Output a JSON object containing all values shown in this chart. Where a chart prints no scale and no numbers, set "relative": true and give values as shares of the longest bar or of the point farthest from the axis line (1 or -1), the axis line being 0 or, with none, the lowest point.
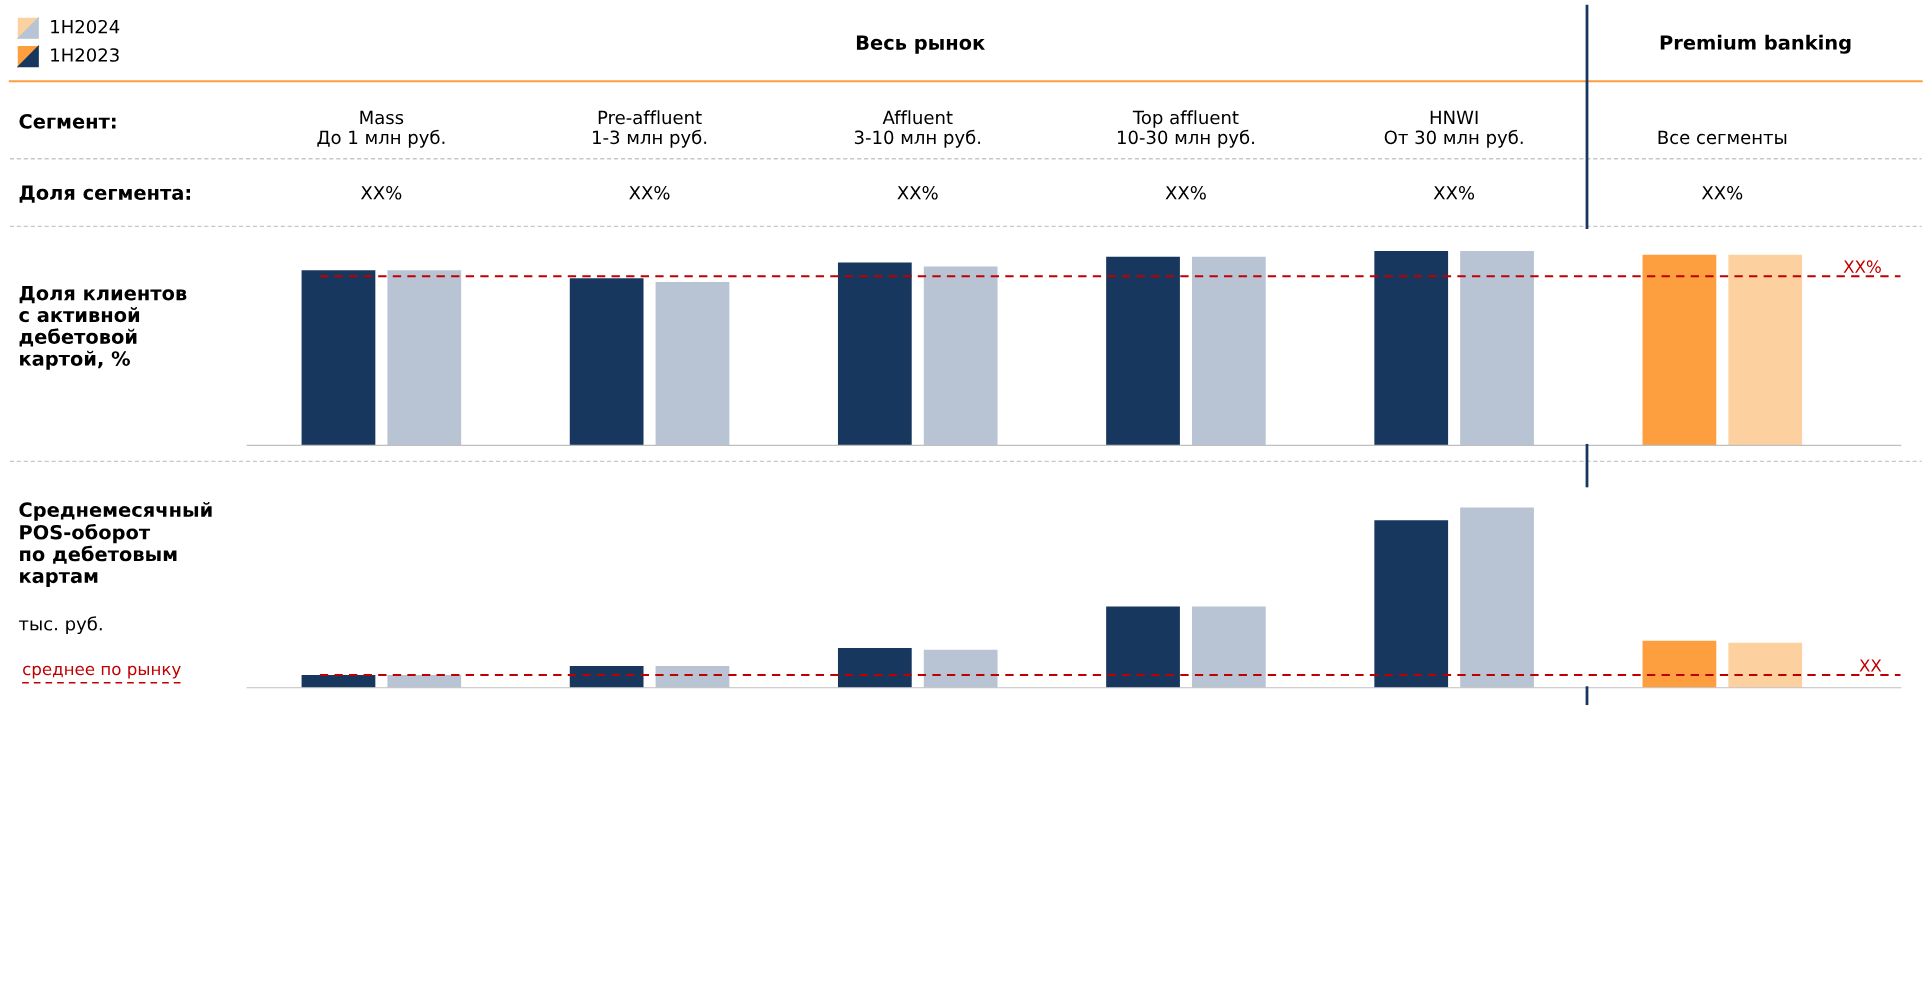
{
  "chart_data": [
    {
      "type": "bar",
      "title": "Доля клиентов\nс активной\nдебетовой\nкартой, %",
      "relative": true,
      "legend": "top left",
      "categories": [
        "Mass\nДо 1 млн руб.",
        "Pre-affluent\n1-3 млн руб.",
        "Affluent\n3-10 млн руб.",
        "Top affluent\n10-30 млн руб.",
        "HNWI\nОт 30 млн руб.",
        "Все сегменты"
      ],
      "series": [
        {
          "name": "1H2023",
          "color": "#17375e",
          "colors": [
            "#17375e",
            "#17375e",
            "#17375e",
            "#17375e",
            "#17375e",
            "#fd9e3f"
          ],
          "values": [
            0.9,
            0.86,
            0.94,
            0.97,
            1.0,
            0.98
          ]
        },
        {
          "name": "1H2024",
          "color": "#b8c4d4",
          "colors": [
            "#b8c4d4",
            "#b8c4d4",
            "#b8c4d4",
            "#b8c4d4",
            "#b8c4d4",
            "#fdd0a0"
          ],
          "values": [
            0.9,
            0.84,
            0.92,
            0.97,
            1.0,
            0.98
          ]
        }
      ],
      "ref_lines": [
        {
          "axis": "y",
          "value": 0.87,
          "label": "XX%",
          "color": "#c00000",
          "line_style": "dashed"
        }
      ],
      "annotations": [
        "Весь рынок",
        "Premium banking",
        "Сегмент:",
        "Доля сегмента:",
        "XX%",
        "XX%",
        "XX%",
        "XX%",
        "XX%",
        "XX%"
      ]
    },
    {
      "type": "bar",
      "title": "Среднемесячный\nPOS-оборот\nпо дебетовым\nкартам",
      "ylabel": "тыс. руб.",
      "relative": true,
      "categories": [
        null,
        null,
        null,
        null,
        null,
        null
      ],
      "series": [
        {
          "colors": [
            "#17375e",
            "#17375e",
            "#17375e",
            "#17375e",
            "#17375e",
            "#fd9e3f"
          ],
          "values": [
            0.07,
            0.12,
            0.22,
            0.45,
            0.93,
            0.26
          ]
        },
        {
          "colors": [
            "#b8c4d4",
            "#b8c4d4",
            "#b8c4d4",
            "#b8c4d4",
            "#b8c4d4",
            "#fdd0a0"
          ],
          "values": [
            0.07,
            0.12,
            0.21,
            0.45,
            1.0,
            0.25
          ]
        }
      ],
      "ref_lines": [
        {
          "axis": "y",
          "value": 0.07,
          "label": "XX",
          "color": "#c00000",
          "line_style": "dashed"
        }
      ],
      "annotations": [
        "среднее по рынку"
      ]
    }
  ]
}
